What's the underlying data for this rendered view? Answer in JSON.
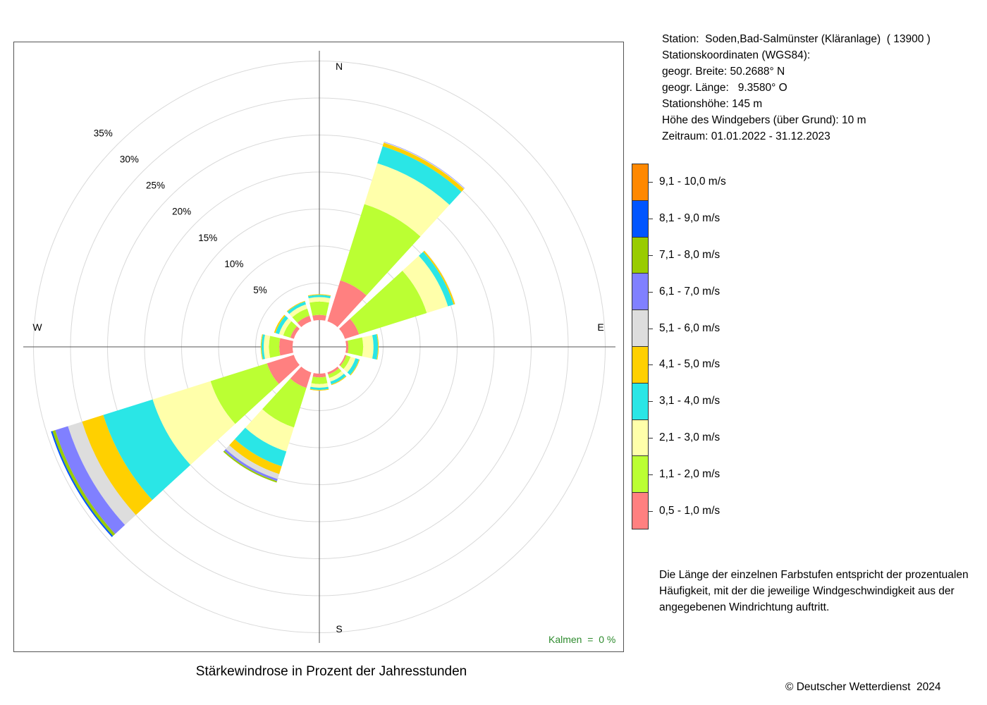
{
  "station": {
    "line1": "Station:  Soden,Bad-Salmünster (Kläranlage)  ( 13900 )",
    "line2": "Stationskoordinaten (WGS84):",
    "line3": "geogr. Breite: 50.2688° N",
    "line4": "geogr. Länge:   9.3580° O",
    "line5": "Stationshöhe: 145 m",
    "line6": "Höhe des Windgebers (über Grund): 10 m",
    "line7": "Zeitraum: 01.01.2022 - 31.12.2023"
  },
  "note": "Die Länge der einzelnen Farbstufen entspricht der prozentualen Häufigkeit, mit der die jeweilige Windgeschwindigkeit aus der angegebenen Windrichtung auftritt.",
  "calm_label": "Kalmen  =  0 %",
  "copyright": "© Deutscher Wetterdienst  2024",
  "chart_data": {
    "type": "wind-rose",
    "title": "Stärkewindrose in Prozent der Jahresstunden",
    "compass": [
      "N",
      "E",
      "S",
      "W"
    ],
    "ring_labels": [
      "5%",
      "10%",
      "15%",
      "20%",
      "25%",
      "30%",
      "35%"
    ],
    "rings": [
      5,
      10,
      15,
      20,
      25,
      30,
      35
    ],
    "calm_percent": 0,
    "directions_deg": [
      0,
      30,
      60,
      90,
      120,
      150,
      180,
      210,
      240,
      270,
      300,
      330
    ],
    "speed_classes": [
      {
        "label": "0,5 - 1,0 m/s",
        "color": "#ff8080"
      },
      {
        "label": "1,1 - 2,0 m/s",
        "color": "#bbff33"
      },
      {
        "label": "2,1 - 3,0 m/s",
        "color": "#ffffaa"
      },
      {
        "label": "3,1 - 4,0 m/s",
        "color": "#2ae6e6"
      },
      {
        "label": "4,1 - 5,0 m/s",
        "color": "#ffd000"
      },
      {
        "label": "5,1 - 6,0 m/s",
        "color": "#dddddd"
      },
      {
        "label": "6,1 - 7,0 m/s",
        "color": "#8080ff"
      },
      {
        "label": "7,1 - 8,0 m/s",
        "color": "#99cc00"
      },
      {
        "label": "8,1 - 9,0 m/s",
        "color": "#0055ff"
      },
      {
        "label": "9,1 - 10,0 m/s",
        "color": "#ff8800"
      }
    ],
    "series": [
      {
        "direction": 0,
        "values": [
          0.7,
          1.8,
          0.6,
          0.3,
          0.1,
          0,
          0,
          0,
          0,
          0
        ]
      },
      {
        "direction": 30,
        "values": [
          5.8,
          10.8,
          5.8,
          2.4,
          0.5,
          0.1,
          0.05,
          0,
          0,
          0
        ]
      },
      {
        "direction": 60,
        "values": [
          2.0,
          9.6,
          3.0,
          0.8,
          0.2,
          0.05,
          0,
          0,
          0,
          0
        ]
      },
      {
        "direction": 90,
        "values": [
          0.3,
          2.0,
          1.4,
          0.6,
          0.1,
          0,
          0,
          0,
          0,
          0
        ]
      },
      {
        "direction": 120,
        "values": [
          0.2,
          0.6,
          0.7,
          0.5,
          0.1,
          0,
          0,
          0,
          0,
          0
        ]
      },
      {
        "direction": 150,
        "values": [
          0.3,
          0.5,
          0.5,
          0.4,
          0.1,
          0,
          0,
          0,
          0,
          0
        ]
      },
      {
        "direction": 180,
        "values": [
          0.5,
          0.9,
          0.5,
          0.3,
          0.1,
          0,
          0,
          0,
          0,
          0
        ]
      },
      {
        "direction": 210,
        "values": [
          2.2,
          5.6,
          3.4,
          2.1,
          1.1,
          0.7,
          0.3,
          0.2,
          0,
          0
        ]
      },
      {
        "direction": 240,
        "values": [
          3.8,
          8.0,
          8.2,
          7.0,
          3.0,
          2.0,
          1.8,
          0.4,
          0.2,
          0
        ]
      },
      {
        "direction": 270,
        "values": [
          1.8,
          1.4,
          0.7,
          0.3,
          0.1,
          0,
          0,
          0,
          0,
          0
        ]
      },
      {
        "direction": 300,
        "values": [
          0.5,
          1.0,
          0.6,
          0.5,
          0.2,
          0,
          0,
          0,
          0,
          0
        ]
      },
      {
        "direction": 330,
        "values": [
          0.8,
          1.0,
          0.6,
          0.4,
          0.1,
          0,
          0,
          0,
          0,
          0
        ]
      }
    ]
  }
}
